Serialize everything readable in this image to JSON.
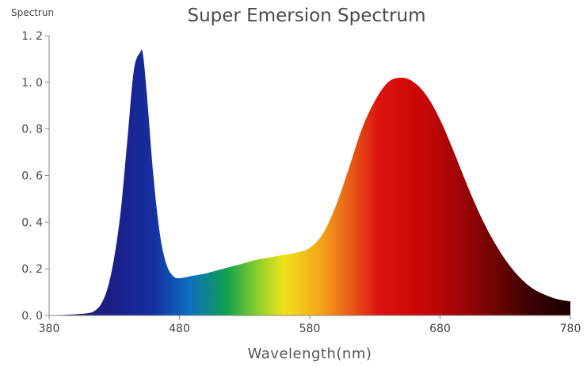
{
  "chart_data": {
    "type": "area",
    "title": "Super Emersion Spectrum",
    "xlabel": "Wavelength(nm)",
    "ylabel": "Spectrun",
    "xlim": [
      380,
      780
    ],
    "ylim": [
      0,
      1.2
    ],
    "x_ticks": [
      "380",
      "480",
      "580",
      "680",
      "780"
    ],
    "x_tick_values": [
      380,
      480,
      580,
      680,
      780
    ],
    "y_ticks": [
      "0. 0",
      "0. 2",
      "0. 4",
      "0. 6",
      "0. 8",
      "1. 0",
      "1. 2"
    ],
    "y_tick_values": [
      0,
      0.2,
      0.4,
      0.6,
      0.8,
      1.0,
      1.2
    ],
    "grid": false,
    "fill": "wavelength-color gradient",
    "series": [
      {
        "x": [
          380,
          400,
          410,
          415,
          420,
          425,
          430,
          435,
          440,
          445,
          450,
          452,
          455,
          460,
          465,
          470,
          475,
          480,
          490,
          500,
          510,
          520,
          530,
          540,
          550,
          560,
          570,
          580,
          590,
          600,
          610,
          620,
          630,
          640,
          650,
          660,
          670,
          680,
          690,
          700,
          710,
          720,
          730,
          740,
          750,
          760,
          770,
          780
        ],
        "y": [
          0.0,
          0.005,
          0.01,
          0.02,
          0.05,
          0.12,
          0.25,
          0.45,
          0.75,
          1.05,
          1.13,
          1.12,
          0.95,
          0.6,
          0.35,
          0.22,
          0.17,
          0.16,
          0.17,
          0.18,
          0.195,
          0.21,
          0.225,
          0.24,
          0.25,
          0.26,
          0.27,
          0.29,
          0.35,
          0.47,
          0.63,
          0.8,
          0.92,
          1.0,
          1.02,
          1.0,
          0.94,
          0.84,
          0.71,
          0.57,
          0.44,
          0.33,
          0.24,
          0.17,
          0.12,
          0.09,
          0.07,
          0.06
        ]
      }
    ]
  }
}
